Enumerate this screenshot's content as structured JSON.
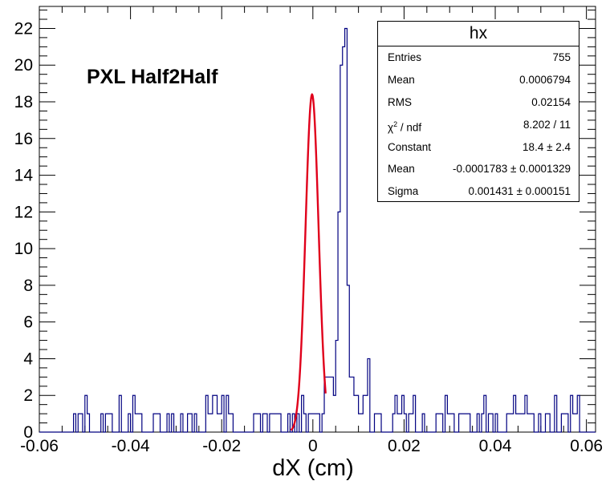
{
  "chart_data": {
    "type": "histogram",
    "title": "PXL Half2Half",
    "xlabel": "dX (cm)",
    "ylabel": "",
    "xlim": [
      -0.06,
      0.062
    ],
    "ylim": [
      0,
      23.2
    ],
    "xticks": [
      "-0.06",
      "-0.04",
      "-0.02",
      "0",
      "0.02",
      "0.04",
      "0.06"
    ],
    "yticks": [
      "0",
      "2",
      "4",
      "6",
      "8",
      "10",
      "12",
      "14",
      "16",
      "18",
      "20",
      "22"
    ],
    "line_color": "#000080",
    "fit_color": "#e0001b",
    "bin_width": 0.0005,
    "bins_x_start": -0.0525,
    "counts": [
      1,
      0,
      1,
      1,
      0,
      2,
      1,
      0,
      0,
      0,
      0,
      0,
      1,
      0,
      1,
      1,
      1,
      0,
      0,
      0,
      2,
      0,
      0,
      0,
      1,
      0,
      2,
      1,
      1,
      1,
      0,
      0,
      0,
      0,
      0,
      1,
      1,
      1,
      0,
      0,
      0,
      1,
      0,
      1,
      0,
      0,
      0,
      1,
      0,
      0,
      1,
      1,
      0,
      1,
      0,
      0,
      0,
      0,
      2,
      1,
      1,
      2,
      2,
      1,
      1,
      2,
      0,
      2,
      1,
      1,
      0,
      0,
      0,
      0,
      0,
      0,
      0,
      0,
      0,
      1,
      1,
      1,
      0,
      1,
      1,
      0,
      1,
      1,
      1,
      1,
      1,
      0,
      0,
      0,
      1,
      0,
      1,
      0,
      1,
      0,
      2,
      1,
      0,
      1,
      1,
      1,
      1,
      1,
      0,
      1,
      3,
      3,
      3,
      3,
      2,
      5,
      12,
      20,
      21,
      22,
      8,
      3,
      3,
      2,
      2,
      1,
      1,
      2,
      2,
      4,
      0,
      0,
      1,
      1,
      1,
      0,
      0,
      0,
      0,
      0,
      1,
      2,
      1,
      1,
      2,
      1,
      0,
      1,
      1,
      2,
      0,
      0,
      0,
      1,
      0,
      0,
      0,
      0,
      0,
      1,
      1,
      1,
      0,
      2,
      1,
      1,
      1,
      0,
      0,
      1,
      1,
      1,
      1,
      1,
      0,
      0,
      0,
      1,
      0,
      1,
      2,
      0,
      1,
      1,
      0,
      1,
      0,
      0,
      0,
      0,
      1,
      1,
      1,
      2,
      1,
      1,
      1,
      1,
      2,
      1,
      1,
      1,
      0,
      0,
      1,
      0,
      0,
      1,
      1,
      0,
      0,
      2,
      0,
      0,
      1,
      1,
      1,
      0,
      2,
      1,
      1,
      2
    ],
    "fit": {
      "function": "gaus",
      "constant": 18.4,
      "mean": -0.0001783,
      "sigma": 0.001431,
      "x_range": [
        -0.0048,
        0.0028
      ]
    },
    "grid": false,
    "legend": "none"
  },
  "stats": {
    "title": "hx",
    "rows": [
      {
        "label": "Entries",
        "value": "755"
      },
      {
        "label": "Mean",
        "value": "0.0006794"
      },
      {
        "label": "RMS",
        "value": "0.02154"
      },
      {
        "label": "chi2_ndf",
        "value": "8.202 / 11"
      },
      {
        "label": "Constant",
        "value": "18.4 ± 2.4"
      },
      {
        "label": "Mean",
        "value": "-0.0001783 ± 0.0001329"
      },
      {
        "label": "Sigma",
        "value": "0.001431 ± 0.000151"
      }
    ]
  }
}
